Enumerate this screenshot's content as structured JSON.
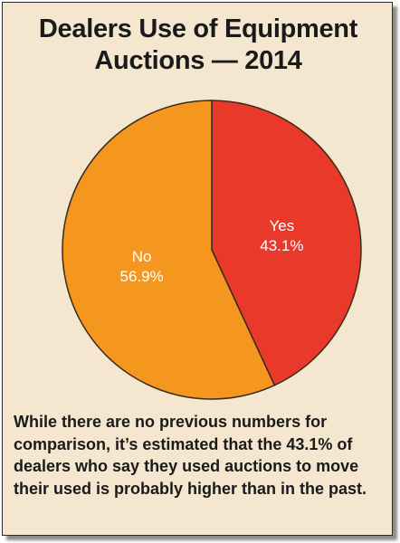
{
  "title": {
    "line1": "Dealers Use of Equipment",
    "line2": "Auctions — 2014"
  },
  "caption": "While there are no previous numbers for comparison, it’s estimated that the 43.1% of dealers who say they used auctions to move their used is probably higher than in the past.",
  "colors": {
    "yes": "#e8392b",
    "no": "#f5961e",
    "stroke": "#3a2a1a",
    "background": "#f5e7cf"
  },
  "chart_data": {
    "type": "pie",
    "title": "Dealers Use of Equipment Auctions — 2014",
    "slices": [
      {
        "name": "Yes",
        "value": 43.1,
        "label": "43.1%",
        "color": "#e8392b"
      },
      {
        "name": "No",
        "value": 56.9,
        "label": "56.9%",
        "color": "#f5961e"
      }
    ],
    "start": "12 o'clock",
    "direction": "clockwise"
  }
}
